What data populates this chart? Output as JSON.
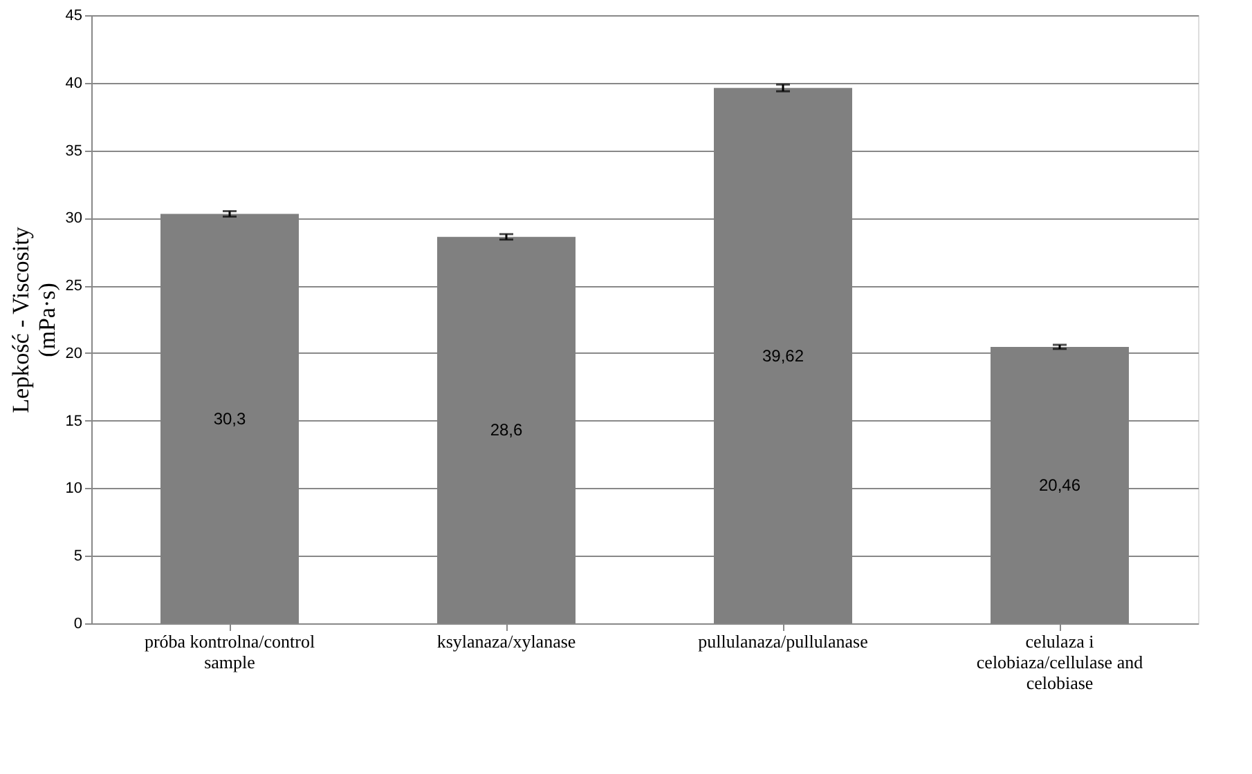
{
  "chart_data": {
    "type": "bar",
    "ylabel": "Lepkość - Viscosity\n(mPa·s)",
    "categories": [
      "próba kontrolna/control sample",
      "ksylanaza/xylanase",
      "pullulanaza/pullulanase",
      "celulaza i celobiaza/cellulase and celobiase"
    ],
    "values": [
      30.3,
      28.6,
      39.62,
      20.46
    ],
    "value_labels": [
      "30,3",
      "28,6",
      "39,62",
      "20,46"
    ],
    "errors": [
      0.2,
      0.2,
      0.25,
      0.15
    ],
    "color": "#808080",
    "ylim": [
      0,
      45
    ],
    "yticks": [
      0,
      5,
      10,
      15,
      20,
      25,
      30,
      35,
      40,
      45
    ],
    "grid": "y"
  }
}
